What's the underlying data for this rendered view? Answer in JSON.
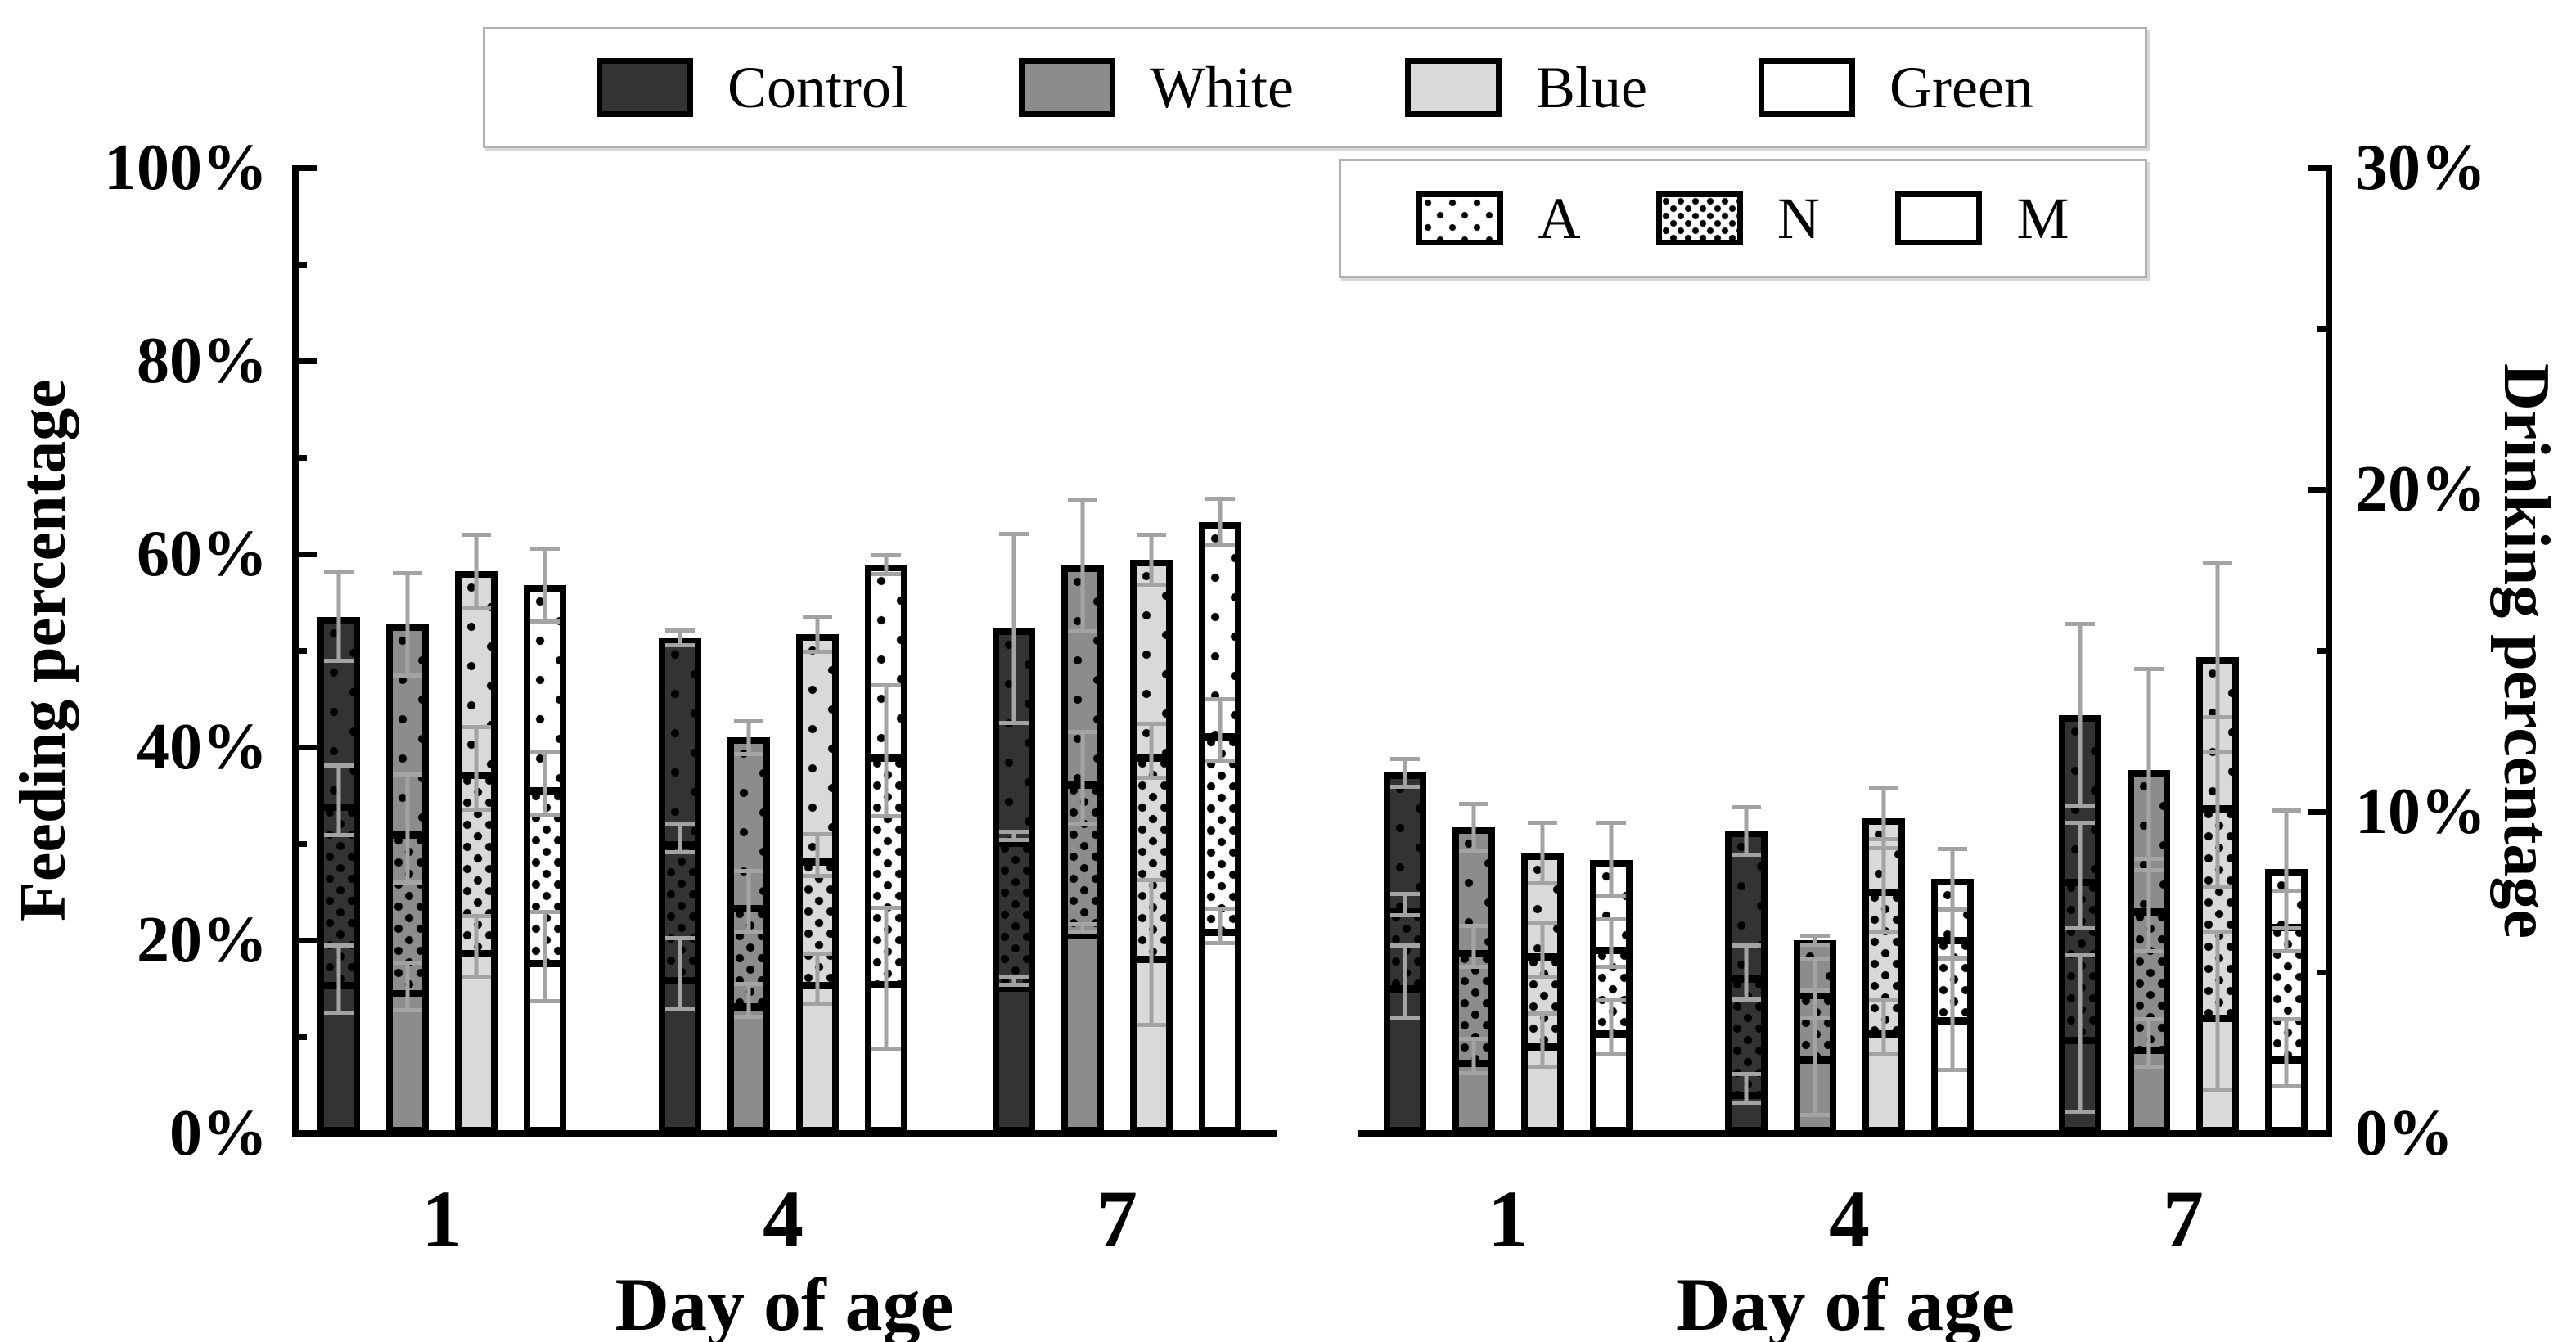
{
  "figure": {
    "background": "#ffffff",
    "error_bar_color": "#a3a3a3",
    "axis_color": "#000000",
    "legend_groups": {
      "items": [
        {
          "label": "Control",
          "color": "#333333"
        },
        {
          "label": "White",
          "color": "#8c8c8c"
        },
        {
          "label": "Blue",
          "color": "#d9d9d9"
        },
        {
          "label": "Green",
          "color": "#ffffff"
        }
      ]
    },
    "legend_patterns": {
      "items": [
        {
          "label": "A",
          "pattern": "sparse-dots"
        },
        {
          "label": "N",
          "pattern": "dense-dots"
        },
        {
          "label": "M",
          "pattern": "plain"
        }
      ]
    }
  },
  "chart_data": [
    {
      "type": "bar",
      "stacked": true,
      "position": "left",
      "ylabel": "Feeding percentage",
      "xlabel": "Day of age",
      "yaxis_side": "left",
      "ylim": [
        0,
        100
      ],
      "ytick_step": 20,
      "yminor_step": 10,
      "ytick_labels": [
        "0%",
        "20%",
        "40%",
        "60%",
        "80%",
        "100%"
      ],
      "categories": [
        "1",
        "4",
        "7"
      ],
      "groups": [
        "Control",
        "White",
        "Blue",
        "Green"
      ],
      "segments_bottom_to_top": [
        "M",
        "N",
        "A"
      ],
      "days": [
        {
          "day": "1",
          "bars": [
            {
              "group": "Control",
              "m_top": 16.0,
              "n_top": 34.5,
              "total": 53.5,
              "err_m": 3.7,
              "err_n": 3.8,
              "err_total": 4.8
            },
            {
              "group": "White",
              "m_top": 15.2,
              "n_top": 31.6,
              "total": 52.7,
              "err_m": 2.7,
              "err_n": 5.8,
              "err_total": 5.5
            },
            {
              "group": "Blue",
              "m_top": 19.3,
              "n_top": 37.8,
              "total": 58.2,
              "err_m": 3.4,
              "err_n": 4.5,
              "err_total": 4.0
            },
            {
              "group": "Green",
              "m_top": 18.3,
              "n_top": 36.2,
              "total": 56.8,
              "err_m": 4.8,
              "err_n": 3.5,
              "err_total": 4.0
            }
          ]
        },
        {
          "day": "4",
          "bars": [
            {
              "group": "Control",
              "m_top": 16.5,
              "n_top": 30.6,
              "total": 51.3,
              "err_m": 3.9,
              "err_n": 1.7,
              "err_total": 1.0
            },
            {
              "group": "White",
              "m_top": 13.8,
              "n_top": 24.0,
              "total": 41.0,
              "err_m": 1.9,
              "err_n": 3.4,
              "err_total": 1.9
            },
            {
              "group": "Blue",
              "m_top": 16.0,
              "n_top": 28.8,
              "total": 51.7,
              "err_m": 2.8,
              "err_n": 2.4,
              "err_total": 2.0
            },
            {
              "group": "Green",
              "m_top": 16.1,
              "n_top": 39.6,
              "total": 58.9,
              "err_m": 7.5,
              "err_n": 7.0,
              "err_total": 1.2
            }
          ]
        },
        {
          "day": "7",
          "bars": [
            {
              "group": "Control",
              "m_top": 15.8,
              "n_top": 30.8,
              "total": 52.3,
              "err_m": 0.6,
              "err_n": 0.6,
              "err_total": 10.0
            },
            {
              "group": "White",
              "m_top": 21.3,
              "n_top": 36.8,
              "total": 58.8,
              "err_m": 0.6,
              "err_n": 5.0,
              "err_total": 7.0
            },
            {
              "group": "Blue",
              "m_top": 18.7,
              "n_top": 39.6,
              "total": 59.4,
              "err_m": 7.7,
              "err_n": 3.0,
              "err_total": 2.8
            },
            {
              "group": "Green",
              "m_top": 21.5,
              "n_top": 41.8,
              "total": 63.3,
              "err_m": 2.0,
              "err_n": 3.4,
              "err_total": 2.6
            }
          ]
        }
      ]
    },
    {
      "type": "bar",
      "stacked": true,
      "position": "right",
      "ylabel": "Drinking percentage",
      "xlabel": "Day of age",
      "yaxis_side": "right",
      "ylim": [
        0,
        30
      ],
      "ytick_step": 10,
      "yminor_step": 5,
      "ytick_labels": [
        "0%",
        "10%",
        "20%",
        "30%"
      ],
      "categories": [
        "1",
        "4",
        "7"
      ],
      "groups": [
        "Control",
        "White",
        "Blue",
        "Green"
      ],
      "segments_bottom_to_top": [
        "M",
        "N",
        "A"
      ],
      "days": [
        {
          "day": "1",
          "bars": [
            {
              "group": "Control",
              "m_top": 4.7,
              "n_top": 7.1,
              "total": 11.2,
              "err_m": 1.2,
              "err_n": 0.4,
              "err_total": 0.5
            },
            {
              "group": "White",
              "m_top": 2.4,
              "n_top": 5.8,
              "total": 9.5,
              "err_m": 0.6,
              "err_n": 0.7,
              "err_total": 0.8
            },
            {
              "group": "Blue",
              "m_top": 2.9,
              "n_top": 5.7,
              "total": 8.7,
              "err_m": 0.9,
              "err_n": 0.9,
              "err_total": 1.0
            },
            {
              "group": "Green",
              "m_top": 3.3,
              "n_top": 5.9,
              "total": 8.5,
              "err_m": 0.9,
              "err_n": 0.8,
              "err_total": 1.2
            }
          ]
        },
        {
          "day": "4",
          "bars": [
            {
              "group": "Control",
              "m_top": 1.4,
              "n_top": 5.0,
              "total": 9.4,
              "err_m": 0.5,
              "err_n": 0.9,
              "err_total": 0.8
            },
            {
              "group": "White",
              "m_top": 2.5,
              "n_top": 4.5,
              "total": 6.0,
              "err_m": 2.0,
              "err_n": 1.0,
              "err_total": 0.2
            },
            {
              "group": "Blue",
              "m_top": 3.3,
              "n_top": 7.7,
              "total": 9.8,
              "err_m": 0.9,
              "err_n": 1.5,
              "err_total": 1.0
            },
            {
              "group": "Green",
              "m_top": 3.7,
              "n_top": 6.2,
              "total": 7.9,
              "err_m": 1.8,
              "err_n": 0.8,
              "err_total": 1.0
            }
          ]
        },
        {
          "day": "7",
          "bars": [
            {
              "group": "Control",
              "m_top": 3.1,
              "n_top": 8.0,
              "total": 13.0,
              "err_m": 2.5,
              "err_n": 1.7,
              "err_total": 2.9
            },
            {
              "group": "White",
              "m_top": 2.8,
              "n_top": 7.1,
              "total": 11.3,
              "err_m": 0.8,
              "err_n": 1.5,
              "err_total": 3.2
            },
            {
              "group": "Blue",
              "m_top": 3.8,
              "n_top": 10.3,
              "total": 14.8,
              "err_m": 2.5,
              "err_n": 2.7,
              "err_total": 3.0
            },
            {
              "group": "Green",
              "m_top": 2.5,
              "n_top": 6.6,
              "total": 8.2,
              "err_m": 1.1,
              "err_n": 1.0,
              "err_total": 1.9
            }
          ]
        }
      ]
    }
  ]
}
